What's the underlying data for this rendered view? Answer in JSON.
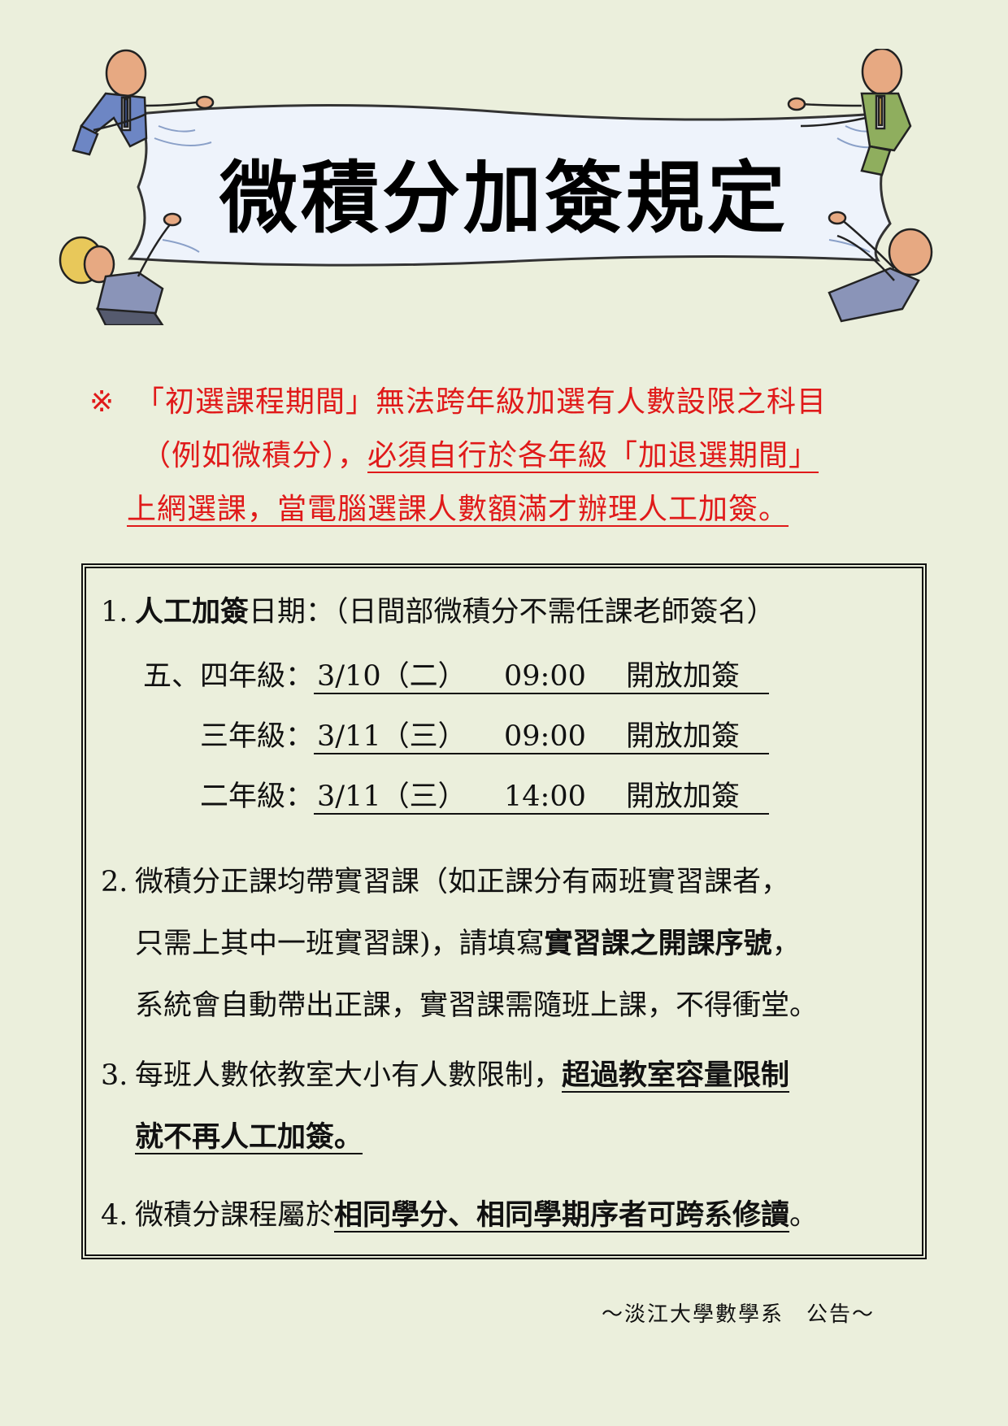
{
  "banner": {
    "title": "微積分加簽規定",
    "illustration": "four-people-holding-banner"
  },
  "notice": {
    "mark": "※",
    "line1": "「初選課程期間」無法跨年級加選有人數設限之科目",
    "line2_plain": "（例如微積分），",
    "line2_underlined": "必須自行於各年級「加退選期間」",
    "line3_underlined": "上網選課，當電腦選課人數額滿才辦理人工加簽。",
    "color": "#e01a1a"
  },
  "rules": {
    "item1": {
      "num": "1.",
      "title_bold": "人工加簽",
      "title_rest": "日期：（日間部微積分不需任課老師簽名）",
      "schedule": [
        {
          "label": "五、四年級：",
          "date": "3/10（二）",
          "time": "09:00",
          "action": "開放加簽"
        },
        {
          "label": "三年級：",
          "date": "3/11（三）",
          "time": "09:00",
          "action": "開放加簽"
        },
        {
          "label": "二年級：",
          "date": "3/11（三）",
          "time": "14:00",
          "action": "開放加簽"
        }
      ]
    },
    "item2": {
      "num": "2.",
      "line1": "微積分正課均帶實習課（如正課分有兩班實習課者，",
      "line2_plain": "只需上其中一班實習課)，請填寫",
      "line2_bold": "實習課之開課序號",
      "line2_end": "，",
      "line3": "系統會自動帶出正課，實習課需隨班上課，不得衝堂。"
    },
    "item3": {
      "num": "3.",
      "line1_plain": "每班人數依教室大小有人數限制，",
      "line1_underlined": "超過教室容量限制",
      "line2_underlined": "就不再人工加簽。"
    },
    "item4": {
      "num": "4.",
      "plain": "微積分課程屬於",
      "underlined": "相同學分、相同學期序者可跨系修讀",
      "end": "。"
    }
  },
  "footer": "～淡江大學數學系　公告～"
}
